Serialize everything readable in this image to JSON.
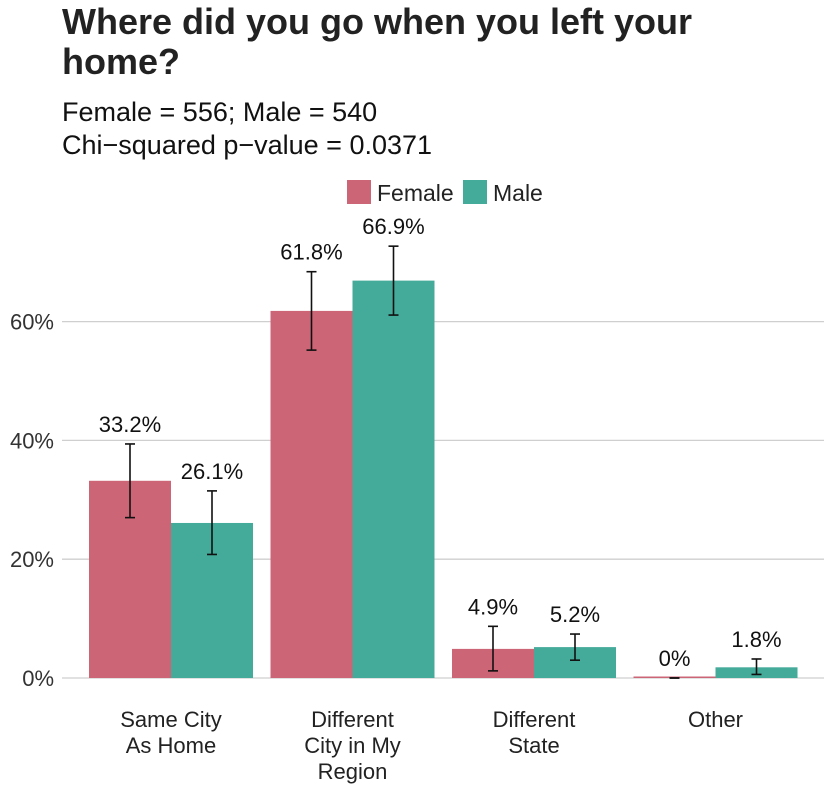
{
  "chart_data": {
    "type": "bar",
    "title": "Where did you go when you left your home?",
    "subtitle_lines": [
      "Female = 556; Male = 540",
      "Chi−squared p−value = 0.0371"
    ],
    "xlabel": "",
    "ylabel": "",
    "categories": [
      [
        "Same City",
        "As Home"
      ],
      [
        "Different",
        "City in My",
        "Region"
      ],
      [
        "Different",
        "State"
      ],
      [
        "Other"
      ]
    ],
    "series": [
      {
        "name": "Female",
        "color": "#cc6677",
        "values": [
          33.2,
          61.8,
          4.9,
          0
        ],
        "labels": [
          "33.2%",
          "61.8%",
          "4.9%",
          "0%"
        ],
        "error_low": [
          27.0,
          55.2,
          1.2,
          0
        ],
        "error_high": [
          39.4,
          68.4,
          8.7,
          0
        ]
      },
      {
        "name": "Male",
        "color": "#44aa99",
        "values": [
          26.1,
          66.9,
          5.2,
          1.8
        ],
        "labels": [
          "26.1%",
          "66.9%",
          "5.2%",
          "1.8%"
        ],
        "error_low": [
          20.8,
          61.1,
          3.0,
          0.6
        ],
        "error_high": [
          31.5,
          72.7,
          7.4,
          3.2
        ]
      }
    ],
    "ylim": [
      0,
      72
    ],
    "yticks": [
      0,
      20,
      40,
      60
    ],
    "ytick_labels": [
      "0%",
      "20%",
      "40%",
      "60%"
    ],
    "grid": true,
    "legend_position": "top"
  }
}
